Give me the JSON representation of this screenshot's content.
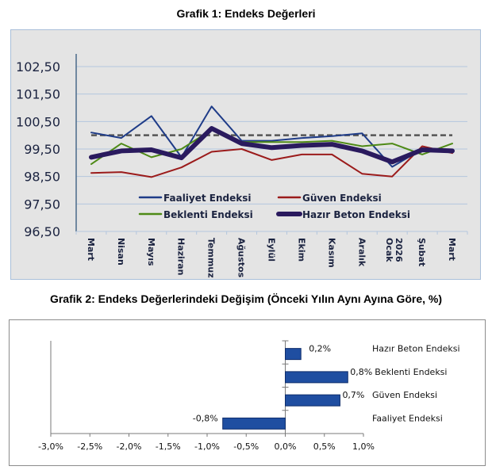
{
  "chart_data": [
    {
      "type": "line",
      "title": "Grafik 1: Endeks Değerleri",
      "xlabel": "",
      "ylabel": "",
      "categories": [
        "Mart",
        "Nisan",
        "Mayıs",
        "Haziran",
        "Temmuz",
        "Ağustos",
        "Eylül",
        "Ekim",
        "Kasım",
        "Aralık",
        "Ocak 2026",
        "Şubat",
        "Mart"
      ],
      "yticks": [
        "102,50",
        "101,50",
        "100,50",
        "99,50",
        "98,50",
        "97,50",
        "96,50"
      ],
      "ylim": [
        96.5,
        102.5
      ],
      "grid": true,
      "reference_line": {
        "value": 100.0,
        "style": "dashed",
        "color": "#555555"
      },
      "legend_position": "bottom-inside",
      "series": [
        {
          "name": "Faaliyet Endeksi",
          "color": "#1f3c88",
          "weight": "thin",
          "values": [
            100.1,
            99.9,
            100.7,
            99.2,
            101.05,
            99.8,
            99.8,
            99.9,
            99.97,
            100.07,
            98.85,
            99.5,
            99.4
          ]
        },
        {
          "name": "Güven Endeksi",
          "color": "#9b1b1b",
          "weight": "thin",
          "values": [
            98.63,
            98.66,
            98.48,
            98.83,
            99.4,
            99.5,
            99.1,
            99.3,
            99.3,
            98.6,
            98.5,
            99.6,
            99.35
          ]
        },
        {
          "name": "Beklenti Endeksi",
          "color": "#4e8a16",
          "weight": "thin",
          "values": [
            98.95,
            99.7,
            99.2,
            99.5,
            100.2,
            99.75,
            99.75,
            99.75,
            99.8,
            99.6,
            99.7,
            99.3,
            99.7
          ]
        },
        {
          "name": "Hazır Beton Endeksi",
          "color": "#2a1a5e",
          "weight": "thick",
          "values": [
            99.2,
            99.43,
            99.47,
            99.18,
            100.25,
            99.7,
            99.55,
            99.63,
            99.67,
            99.43,
            99.03,
            99.47,
            99.43
          ]
        }
      ]
    },
    {
      "type": "bar",
      "orientation": "horizontal",
      "title": "Grafik 2: Endeks Değerlerindeki Değişim (Önceki Yılın Aynı Ayına Göre, %)",
      "xlabel": "",
      "ylabel": "",
      "categories": [
        "Hazır Beton Endeksi",
        "Beklenti Endeksi",
        "Güven Endeksi",
        "Faaliyet Endeksi"
      ],
      "values": [
        0.2,
        0.8,
        0.7,
        -0.8
      ],
      "value_labels": [
        "0,2%",
        "0,8%",
        "0,7%",
        "-0,8%"
      ],
      "xticks": [
        "-3,0%",
        "-2,5%",
        "-2,0%",
        "-1,5%",
        "-1,0%",
        "-0,5%",
        "0,0%",
        "0,5%",
        "1,0%"
      ],
      "xlim": [
        -3.0,
        1.0
      ],
      "grid": false,
      "bar_color": "#1f4ea1"
    }
  ]
}
